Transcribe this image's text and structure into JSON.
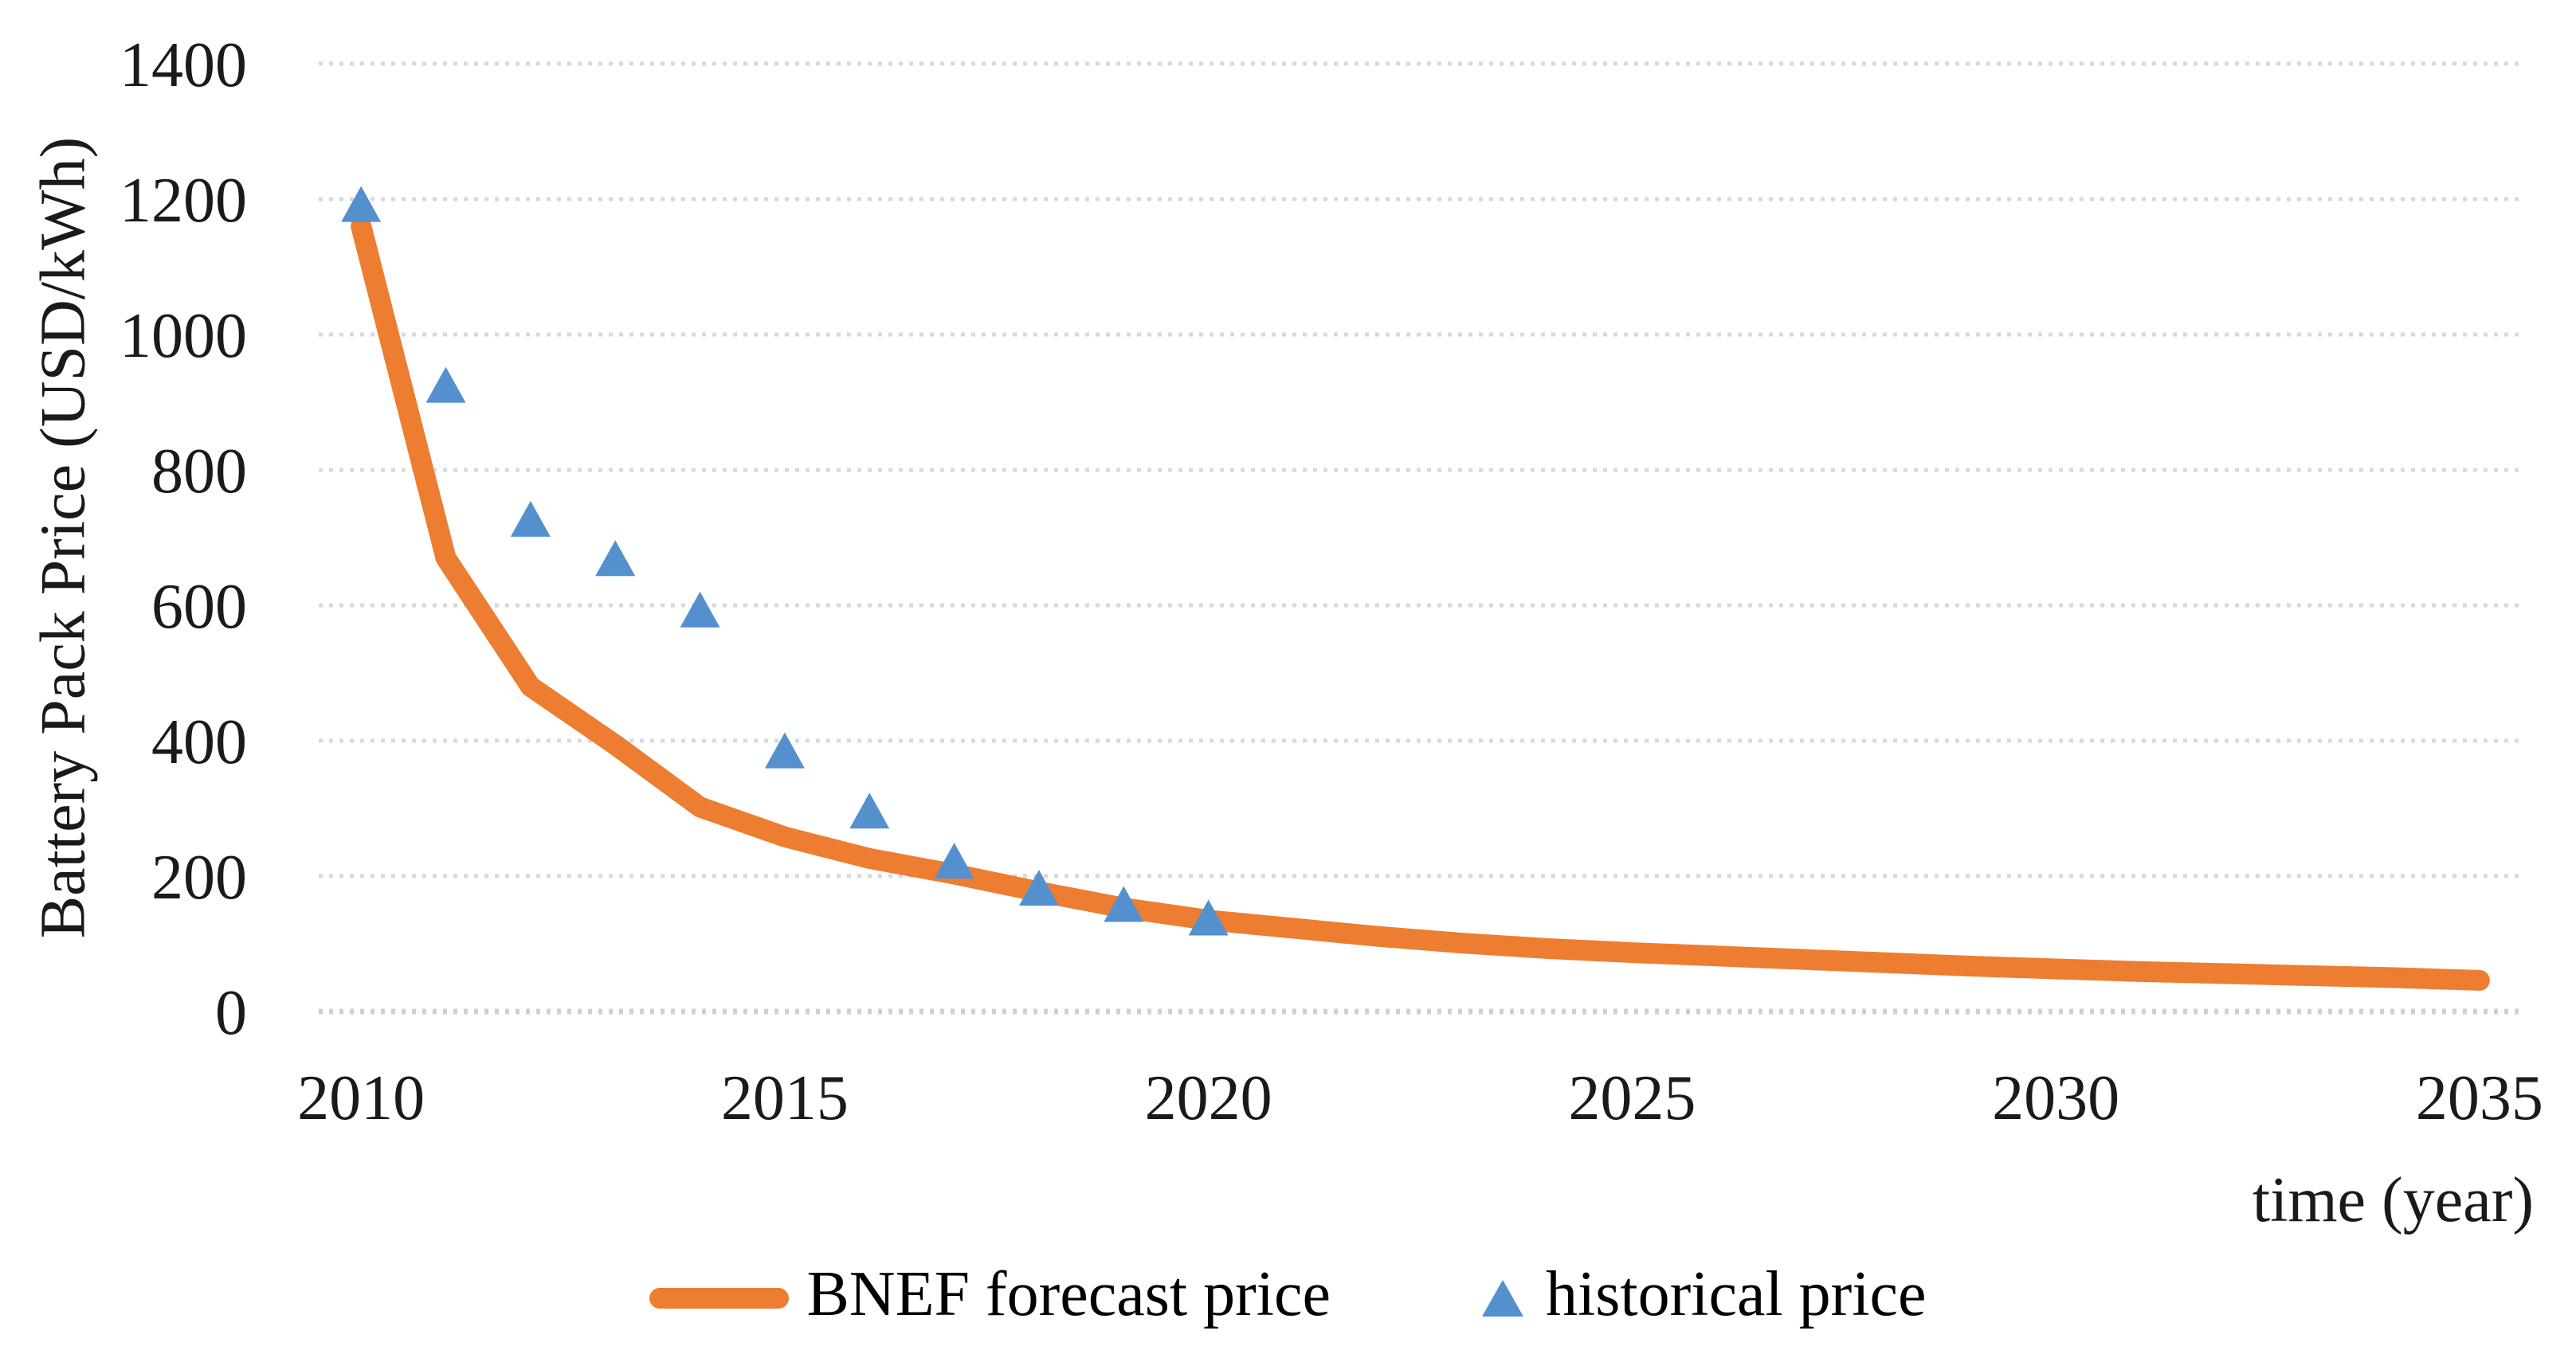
{
  "chart": {
    "y_axis": {
      "title": "Battery Pack Price (USD/kWh)",
      "min": 0,
      "max": 1400,
      "tick_step": 200,
      "ticks": [
        0,
        200,
        400,
        600,
        800,
        1000,
        1200,
        1400
      ]
    },
    "x_axis": {
      "title": "time (year)",
      "min": 2010,
      "max": 2035,
      "ticks": [
        2010,
        2015,
        2020,
        2025,
        2030,
        2035
      ]
    },
    "legend": [
      {
        "label": "BNEF forecast price",
        "marker": "line",
        "color": "#ED7D31"
      },
      {
        "label": "historical price",
        "marker": "triangle",
        "color": "#5590CE"
      }
    ],
    "style": {
      "forecast_color": "#ED7D31",
      "historical_color": "#5590CE",
      "gridline_color": "#D9D9D9",
      "axisline_color": "#D0D0D0",
      "text_color": "#1a1a1a",
      "background": "#ffffff"
    }
  },
  "chart_data": {
    "type": "line",
    "title": "",
    "xlabel": "time (year)",
    "ylabel": "Battery Pack Price (USD/kWh)",
    "xlim": [
      2010,
      2035
    ],
    "ylim": [
      0,
      1400
    ],
    "grid": "horizontal-dotted",
    "legend_position": "bottom-center",
    "series": [
      {
        "name": "BNEF forecast price",
        "type": "line",
        "color": "#ED7D31",
        "line_width": 26,
        "x": [
          2010,
          2011,
          2012,
          2013,
          2014,
          2015,
          2016,
          2017,
          2018,
          2019,
          2020,
          2021,
          2022,
          2023,
          2024,
          2025,
          2026,
          2027,
          2028,
          2029,
          2030,
          2031,
          2032,
          2033,
          2034,
          2035
        ],
        "values": [
          1160,
          670,
          480,
          394,
          302,
          258,
          226,
          203,
          177,
          153,
          135,
          123,
          111,
          101,
          93,
          87,
          82,
          77,
          72,
          67,
          63,
          59,
          56,
          53,
          50,
          46
        ]
      },
      {
        "name": "historical price",
        "type": "scatter",
        "marker": "triangle-up",
        "color": "#5590CE",
        "x": [
          2010,
          2011,
          2012,
          2013,
          2014,
          2015,
          2016,
          2017,
          2018,
          2019,
          2020
        ],
        "values": [
          1191,
          924,
          726,
          668,
          592,
          384,
          295,
          221,
          181,
          157,
          137
        ]
      }
    ]
  }
}
